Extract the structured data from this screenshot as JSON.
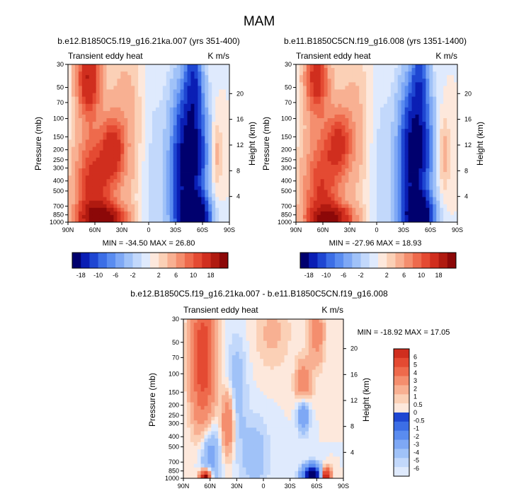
{
  "figure": {
    "title": "MAM"
  },
  "colors": {
    "neg": [
      "#00006e",
      "#0a1eb4",
      "#1e46d2",
      "#3c6ee6",
      "#5a8cf0",
      "#7ea8f5",
      "#a0c2f8",
      "#c2d8fb",
      "#dfeafd"
    ],
    "pos": [
      "#fde8dc",
      "#fbd0b6",
      "#f8b092",
      "#f48e6e",
      "#ee6a4c",
      "#e44a32",
      "#d02e1e",
      "#b01a10",
      "#8c0808"
    ]
  },
  "chart_data": [
    {
      "type": "heatmap",
      "id": "case1",
      "title": "b.e12.B1850C5.f19_g16.21ka.007 (yrs 351-400)",
      "subtitle_left": "Transient eddy heat",
      "subtitle_right": "K m/s",
      "xlabel": "",
      "ylabel": "Pressure (mb)",
      "ylabel_right": "Height (km)",
      "x_ticks": [
        "90N",
        "60N",
        "30N",
        "0",
        "30S",
        "60S",
        "90S"
      ],
      "x_range": [
        90,
        -90
      ],
      "y_ticks": [
        30,
        50,
        70,
        100,
        150,
        200,
        250,
        300,
        400,
        500,
        700,
        850,
        1000
      ],
      "y_range": [
        30,
        1000
      ],
      "height_ticks": [
        4,
        8,
        12,
        16,
        20
      ],
      "stats": "MIN = -34.50  MAX = 26.80",
      "colorbar_labels": [
        "-18",
        "-10",
        "-6",
        "-2",
        "2",
        "6",
        "10",
        "18"
      ],
      "features": [
        {
          "lat": 67,
          "p": 40,
          "value": 14,
          "dlat": 9,
          "dlnp": 0.6
        },
        {
          "lat": 62,
          "p": 500,
          "value": 12,
          "dlat": 14,
          "dlnp": 0.9
        },
        {
          "lat": 50,
          "p": 930,
          "value": 18,
          "dlat": 16,
          "dlnp": 0.22
        },
        {
          "lat": 40,
          "p": 200,
          "value": 10,
          "dlat": 9,
          "dlnp": 0.5
        },
        {
          "lat": 25,
          "p": 120,
          "value": 3,
          "dlat": 14,
          "dlnp": 1.4
        },
        {
          "lat": -3,
          "p": 300,
          "value": -1.5,
          "dlat": 10,
          "dlnp": 2.0
        },
        {
          "lat": -50,
          "p": 40,
          "value": -10,
          "dlat": 6,
          "dlnp": 0.6
        },
        {
          "lat": -48,
          "p": 220,
          "value": -20,
          "dlat": 11,
          "dlnp": 1.0
        },
        {
          "lat": -52,
          "p": 900,
          "value": -28,
          "dlat": 10,
          "dlnp": 0.3
        },
        {
          "lat": -35,
          "p": 500,
          "value": -8,
          "dlat": 10,
          "dlnp": 1.5
        },
        {
          "lat": -75,
          "p": 220,
          "value": 3,
          "dlat": 5,
          "dlnp": 0.6
        }
      ]
    },
    {
      "type": "heatmap",
      "id": "case2",
      "title": "b.e11.B1850C5CN.f19_g16.008 (yrs 1351-1400)",
      "subtitle_left": "Transient eddy heat",
      "subtitle_right": "K m/s",
      "xlabel": "",
      "ylabel": "Pressure (mb)",
      "ylabel_right": "Height (km)",
      "x_ticks": [
        "90N",
        "60N",
        "30N",
        "0",
        "30S",
        "60S",
        "90S"
      ],
      "x_range": [
        90,
        -90
      ],
      "y_ticks": [
        30,
        50,
        70,
        100,
        150,
        200,
        250,
        300,
        400,
        500,
        700,
        850,
        1000
      ],
      "y_range": [
        30,
        1000
      ],
      "height_ticks": [
        4,
        8,
        12,
        16,
        20
      ],
      "stats": "MIN = -27.96  MAX = 18.93",
      "colorbar_labels": [
        "-18",
        "-10",
        "-6",
        "-2",
        "2",
        "6",
        "10",
        "18"
      ],
      "features": [
        {
          "lat": 67,
          "p": 40,
          "value": 12,
          "dlat": 9,
          "dlnp": 0.6
        },
        {
          "lat": 62,
          "p": 500,
          "value": 10,
          "dlat": 14,
          "dlnp": 0.9
        },
        {
          "lat": 50,
          "p": 930,
          "value": 16,
          "dlat": 16,
          "dlnp": 0.22
        },
        {
          "lat": 42,
          "p": 170,
          "value": 9,
          "dlat": 10,
          "dlnp": 0.5
        },
        {
          "lat": 25,
          "p": 120,
          "value": 2.5,
          "dlat": 14,
          "dlnp": 1.4
        },
        {
          "lat": -3,
          "p": 300,
          "value": -1.5,
          "dlat": 10,
          "dlnp": 2.0
        },
        {
          "lat": -48,
          "p": 40,
          "value": -8,
          "dlat": 6,
          "dlnp": 0.6
        },
        {
          "lat": -45,
          "p": 200,
          "value": -18,
          "dlat": 11,
          "dlnp": 1.0
        },
        {
          "lat": -48,
          "p": 880,
          "value": -24,
          "dlat": 10,
          "dlnp": 0.3
        },
        {
          "lat": -35,
          "p": 500,
          "value": -7,
          "dlat": 10,
          "dlnp": 1.5
        },
        {
          "lat": -75,
          "p": 220,
          "value": 3,
          "dlat": 5,
          "dlnp": 0.6
        }
      ]
    },
    {
      "type": "heatmap",
      "id": "diff",
      "title": "b.e12.B1850C5.f19_g16.21ka.007 - b.e11.B1850C5CN.f19_g16.008",
      "subtitle_left": "Transient eddy heat",
      "subtitle_right": "K m/s",
      "xlabel": "",
      "ylabel": "Pressure (mb)",
      "ylabel_right": "Height (km)",
      "x_ticks": [
        "90N",
        "60N",
        "30N",
        "0",
        "30S",
        "60S",
        "90S"
      ],
      "x_range": [
        90,
        -90
      ],
      "y_ticks": [
        30,
        50,
        70,
        100,
        150,
        200,
        250,
        300,
        400,
        500,
        700,
        850,
        1000
      ],
      "y_range": [
        30,
        1000
      ],
      "height_ticks": [
        4,
        8,
        12,
        16,
        20
      ],
      "stats": "MIN = -18.92  MAX =  17.05",
      "colorbar_labels": [
        "6",
        "5",
        "4",
        "3",
        "2",
        "1",
        "0.5",
        "0",
        "-0.5",
        "-1",
        "-2",
        "-3",
        "-4",
        "-5",
        "-6"
      ],
      "features": [
        {
          "lat": 68,
          "p": 70,
          "value": 4,
          "dlat": 9,
          "dlnp": 1.0
        },
        {
          "lat": 60,
          "p": 600,
          "value": -1.5,
          "dlat": 8,
          "dlnp": 0.5
        },
        {
          "lat": 65,
          "p": 970,
          "value": 7,
          "dlat": 4,
          "dlnp": 0.1
        },
        {
          "lat": 40,
          "p": 300,
          "value": 2,
          "dlat": 5,
          "dlnp": 0.5
        },
        {
          "lat": 30,
          "p": 130,
          "value": -0.8,
          "dlat": 8,
          "dlnp": 0.8
        },
        {
          "lat": 10,
          "p": 600,
          "value": -0.8,
          "dlat": 12,
          "dlnp": 0.6
        },
        {
          "lat": -10,
          "p": 40,
          "value": 0.6,
          "dlat": 15,
          "dlnp": 0.6
        },
        {
          "lat": -45,
          "p": 140,
          "value": 2,
          "dlat": 6,
          "dlnp": 0.4
        },
        {
          "lat": -45,
          "p": 230,
          "value": -2.5,
          "dlat": 5,
          "dlnp": 0.3
        },
        {
          "lat": -55,
          "p": 940,
          "value": -8,
          "dlat": 7,
          "dlnp": 0.15
        },
        {
          "lat": -70,
          "p": 950,
          "value": 6,
          "dlat": 4,
          "dlnp": 0.12
        },
        {
          "lat": -60,
          "p": 40,
          "value": 1.5,
          "dlat": 6,
          "dlnp": 0.5
        }
      ]
    }
  ]
}
